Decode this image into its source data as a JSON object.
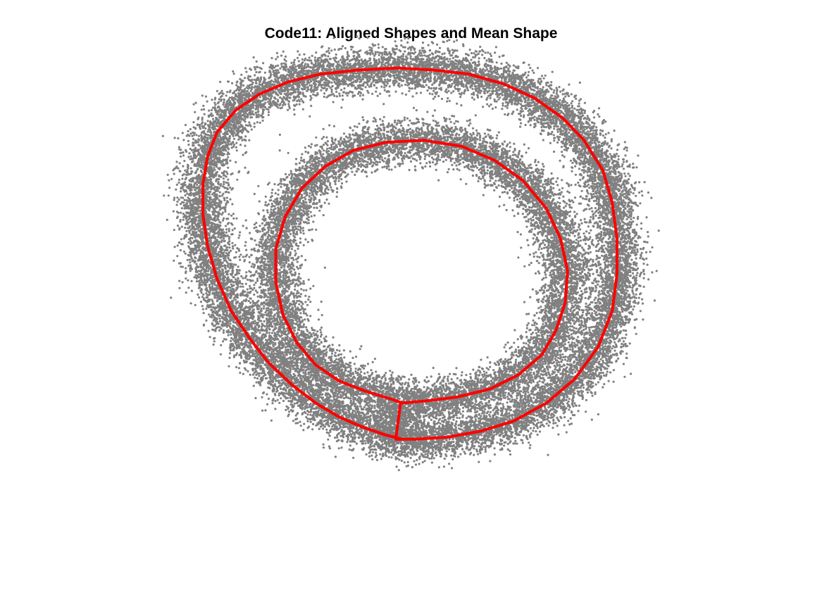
{
  "chart_data": {
    "type": "scatter",
    "title": "Code11: Aligned Shapes and Mean Shape",
    "xlabel": "",
    "ylabel": "",
    "axes_visible": false,
    "grid": false,
    "aspect": "equal",
    "xlim": [
      -1.05,
      1.05
    ],
    "ylim": [
      -1.1,
      1.1
    ],
    "colors": {
      "aligned_points": "#808080",
      "mean_shape": "#ff0000"
    },
    "aligned_shapes": {
      "description_of_points": "dense gray point cloud of many aligned shapes around the mean contour",
      "point_count": 30000,
      "spread": 0.045
    },
    "series": [
      {
        "role": "mean-shape",
        "x": [
          -0.03,
          -0.1,
          -0.2,
          -0.3,
          -0.4,
          -0.5,
          -0.6,
          -0.68,
          -0.76,
          -0.82,
          -0.86,
          -0.88,
          -0.88,
          -0.86,
          -0.82,
          -0.74,
          -0.64,
          -0.52,
          -0.38,
          -0.22,
          -0.05,
          0.1,
          0.25,
          0.4,
          0.53,
          0.65,
          0.74,
          0.82,
          0.86,
          0.88,
          0.88,
          0.86,
          0.8,
          0.7,
          0.58,
          0.44,
          0.3,
          0.16,
          0.02,
          -0.06,
          -0.04,
          0.06,
          0.2,
          0.34,
          0.46,
          0.56,
          0.62,
          0.66,
          0.67,
          0.64,
          0.58,
          0.48,
          0.36,
          0.22,
          0.06,
          -0.1,
          -0.24,
          -0.36,
          -0.46,
          -0.53,
          -0.57,
          -0.57,
          -0.54,
          -0.48,
          -0.4,
          -0.3,
          -0.19,
          -0.08,
          -0.03
        ],
        "y": [
          -0.74,
          -0.72,
          -0.68,
          -0.63,
          -0.56,
          -0.47,
          -0.36,
          -0.24,
          -0.1,
          0.06,
          0.22,
          0.38,
          0.53,
          0.67,
          0.79,
          0.9,
          0.98,
          1.04,
          1.08,
          1.1,
          1.11,
          1.1,
          1.08,
          1.03,
          0.96,
          0.86,
          0.75,
          0.6,
          0.44,
          0.26,
          0.08,
          -0.1,
          -0.28,
          -0.44,
          -0.56,
          -0.65,
          -0.7,
          -0.73,
          -0.74,
          -0.74,
          -0.56,
          -0.55,
          -0.53,
          -0.49,
          -0.42,
          -0.32,
          -0.2,
          -0.06,
          0.1,
          0.26,
          0.41,
          0.55,
          0.65,
          0.72,
          0.75,
          0.74,
          0.7,
          0.62,
          0.51,
          0.37,
          0.21,
          0.04,
          -0.12,
          -0.26,
          -0.37,
          -0.45,
          -0.5,
          -0.54,
          -0.56
        ]
      }
    ]
  }
}
